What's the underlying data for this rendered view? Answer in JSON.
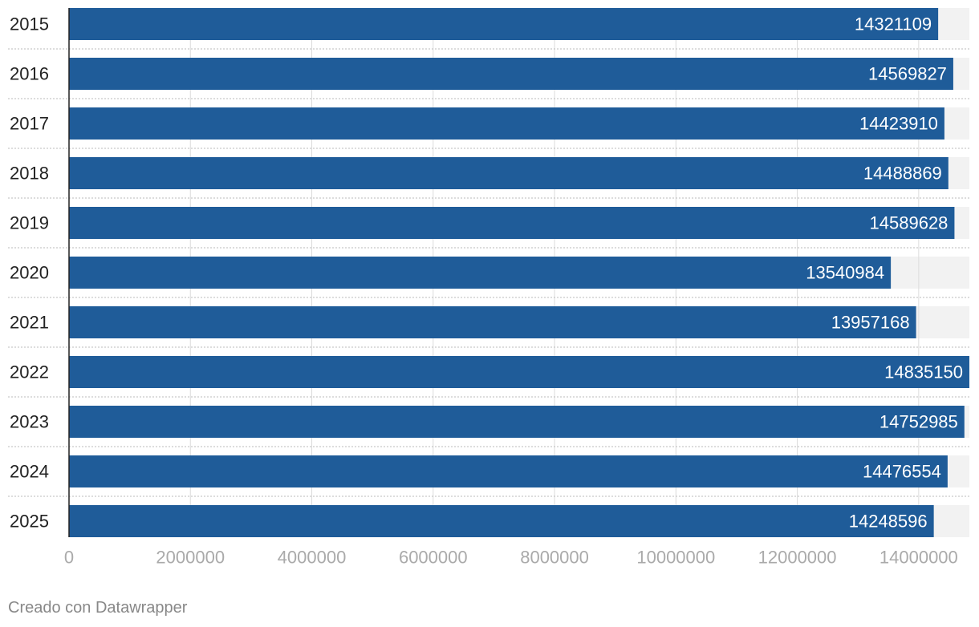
{
  "chart_data": {
    "type": "bar",
    "orientation": "horizontal",
    "categories": [
      "2015",
      "2016",
      "2017",
      "2018",
      "2019",
      "2020",
      "2021",
      "2022",
      "2023",
      "2024",
      "2025"
    ],
    "values": [
      14321109,
      14569827,
      14423910,
      14488869,
      14589628,
      13540984,
      13957168,
      14835150,
      14752985,
      14476554,
      14248596
    ],
    "color": "#1f5c99",
    "xlim": [
      0,
      14835150
    ],
    "xticks": [
      0,
      2000000,
      4000000,
      6000000,
      8000000,
      10000000,
      12000000,
      14000000
    ],
    "grid": true,
    "credit": "Creado con Datawrapper"
  }
}
